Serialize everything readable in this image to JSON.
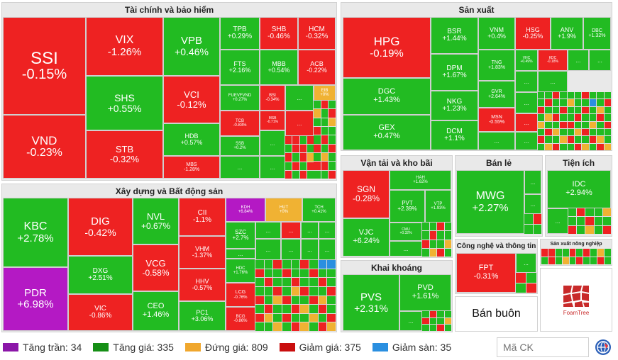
{
  "sectors": {
    "financial": {
      "title": "Tài chính và bảo hiểm"
    },
    "manufacturing": {
      "title": "Sản xuất"
    },
    "construction": {
      "title": "Xây dựng và Bất động sản"
    },
    "transport": {
      "title": "Vận tải và kho bãi"
    },
    "retail": {
      "title": "Bán lẻ"
    },
    "utilities": {
      "title": "Tiện ích"
    },
    "mining": {
      "title": "Khai khoáng"
    },
    "tech": {
      "title": "Công nghệ và thông tin"
    },
    "agri": {
      "title": "Sản xuất nông nghiệp"
    },
    "wholesale": {
      "title": "Bán buôn"
    }
  },
  "tiles": {
    "ssi": {
      "sym": "SSI",
      "pct": "-0.15%"
    },
    "vnd": {
      "sym": "VND",
      "pct": "-0.23%"
    },
    "vix": {
      "sym": "VIX",
      "pct": "-1.26%"
    },
    "shs": {
      "sym": "SHS",
      "pct": "+0.55%"
    },
    "stb": {
      "sym": "STB",
      "pct": "-0.32%"
    },
    "vpb": {
      "sym": "VPB",
      "pct": "+0.46%"
    },
    "vci": {
      "sym": "VCI",
      "pct": "-0.12%"
    },
    "hdb": {
      "sym": "HDB",
      "pct": "+0.57%"
    },
    "mbs": {
      "sym": "MBS",
      "pct": "-1.28%"
    },
    "tpb": {
      "sym": "TPB",
      "pct": "+0.29%"
    },
    "shb": {
      "sym": "SHB",
      "pct": "-0.46%"
    },
    "hcm": {
      "sym": "HCM",
      "pct": "-0.32%"
    },
    "fts": {
      "sym": "FTS",
      "pct": "+2.16%"
    },
    "mbb": {
      "sym": "MBB",
      "pct": "+0.54%"
    },
    "acb": {
      "sym": "ACB",
      "pct": "-0.22%"
    },
    "fuevfvnd": {
      "sym": "FUEVFVND",
      "pct": "+0.27%"
    },
    "bsi": {
      "sym": "BSI",
      "pct": "-0.34%"
    },
    "eib": {
      "sym": "EIB",
      "pct": "+0%"
    },
    "tcb": {
      "sym": "TCB",
      "pct": "-0.83%"
    },
    "msb": {
      "sym": "MSB",
      "pct": "-0.71%"
    },
    "ssb": {
      "sym": "SSB",
      "pct": "+0.2%"
    },
    "hpg": {
      "sym": "HPG",
      "pct": "-0.19%"
    },
    "dgc": {
      "sym": "DGC",
      "pct": "+1.43%"
    },
    "gex": {
      "sym": "GEX",
      "pct": "+0.47%"
    },
    "bsr": {
      "sym": "BSR",
      "pct": "+1.44%"
    },
    "dpm": {
      "sym": "DPM",
      "pct": "+1.67%"
    },
    "nkg": {
      "sym": "NKG",
      "pct": "+1.23%"
    },
    "dcm": {
      "sym": "DCM",
      "pct": "+1.1%"
    },
    "vnm": {
      "sym": "VNM",
      "pct": "+0.4%"
    },
    "hsg": {
      "sym": "HSG",
      "pct": "-0.25%"
    },
    "anv": {
      "sym": "ANV",
      "pct": "+1.9%"
    },
    "dbc": {
      "sym": "DBC",
      "pct": "+1.32%"
    },
    "tng": {
      "sym": "TNG",
      "pct": "+1.83%"
    },
    "vhc": {
      "sym": "VHC",
      "pct": "+0.49%"
    },
    "kdc": {
      "sym": "KDC",
      "pct": "-0.18%"
    },
    "gvr": {
      "sym": "GVR",
      "pct": "+2.64%"
    },
    "msn": {
      "sym": "MSN",
      "pct": "-0.55%"
    },
    "kbc": {
      "sym": "KBC",
      "pct": "+2.78%"
    },
    "pdr": {
      "sym": "PDR",
      "pct": "+6.98%"
    },
    "dig": {
      "sym": "DIG",
      "pct": "-0.42%"
    },
    "dxg": {
      "sym": "DXG",
      "pct": "+2.51%"
    },
    "vic": {
      "sym": "VIC",
      "pct": "-0.86%"
    },
    "nvl": {
      "sym": "NVL",
      "pct": "+0.67%"
    },
    "vcg": {
      "sym": "VCG",
      "pct": "-0.58%"
    },
    "ceo": {
      "sym": "CEO",
      "pct": "+1.46%"
    },
    "cii": {
      "sym": "CII",
      "pct": "-1.1%"
    },
    "vhm": {
      "sym": "VHM",
      "pct": "-1.37%"
    },
    "hhv": {
      "sym": "HHV",
      "pct": "-0.57%"
    },
    "pc1": {
      "sym": "PC1",
      "pct": "+3.06%"
    },
    "kdh": {
      "sym": "KDH",
      "pct": "+6.84%"
    },
    "hut": {
      "sym": "HUT",
      "pct": "+0%"
    },
    "tch": {
      "sym": "TCH",
      "pct": "+0.41%"
    },
    "szc": {
      "sym": "SZC",
      "pct": "+2.7%"
    },
    "hdc": {
      "sym": "HDC",
      "pct": "+1.76%"
    },
    "lcg": {
      "sym": "LCG",
      "pct": "-0.76%"
    },
    "bcg": {
      "sym": "BCG",
      "pct": "-0.86%"
    },
    "sgn": {
      "sym": "SGN",
      "pct": "-0.28%"
    },
    "vjc": {
      "sym": "VJC",
      "pct": "+6.24%"
    },
    "hah": {
      "sym": "HAH",
      "pct": "+1.62%"
    },
    "pvt": {
      "sym": "PVT",
      "pct": "+2.39%"
    },
    "vtp": {
      "sym": "VTP",
      "pct": "+1.93%"
    },
    "cmu": {
      "sym": "CMU",
      "pct": "+0.32%"
    },
    "mwg": {
      "sym": "MWG",
      "pct": "+2.27%"
    },
    "idc": {
      "sym": "IDC",
      "pct": "+2.94%"
    },
    "pvs": {
      "sym": "PVS",
      "pct": "+2.31%"
    },
    "pvd": {
      "sym": "PVD",
      "pct": "+1.61%"
    },
    "fpt": {
      "sym": "FPT",
      "pct": "-0.31%"
    }
  },
  "more": "...",
  "logo": {
    "text": "FoamTree"
  },
  "legend": [
    {
      "label": "Tăng trần: 34",
      "color": "#8b16a8"
    },
    {
      "label": "Tăng giá: 335",
      "color": "#168f16"
    },
    {
      "label": "Đứng giá: 809",
      "color": "#f0a72d"
    },
    {
      "label": "Giảm giá: 375",
      "color": "#c90e0e"
    },
    {
      "label": "Giảm sàn: 35",
      "color": "#2a8fe0"
    }
  ],
  "search": {
    "placeholder": "Mã CK"
  },
  "colors": {
    "up": "#22bb22",
    "down": "#ee2222",
    "ceiling": "#b419c4",
    "flat": "#f0b233",
    "floor": "#2a8fe0"
  },
  "icons": {
    "search_submit": "globe-icon"
  }
}
